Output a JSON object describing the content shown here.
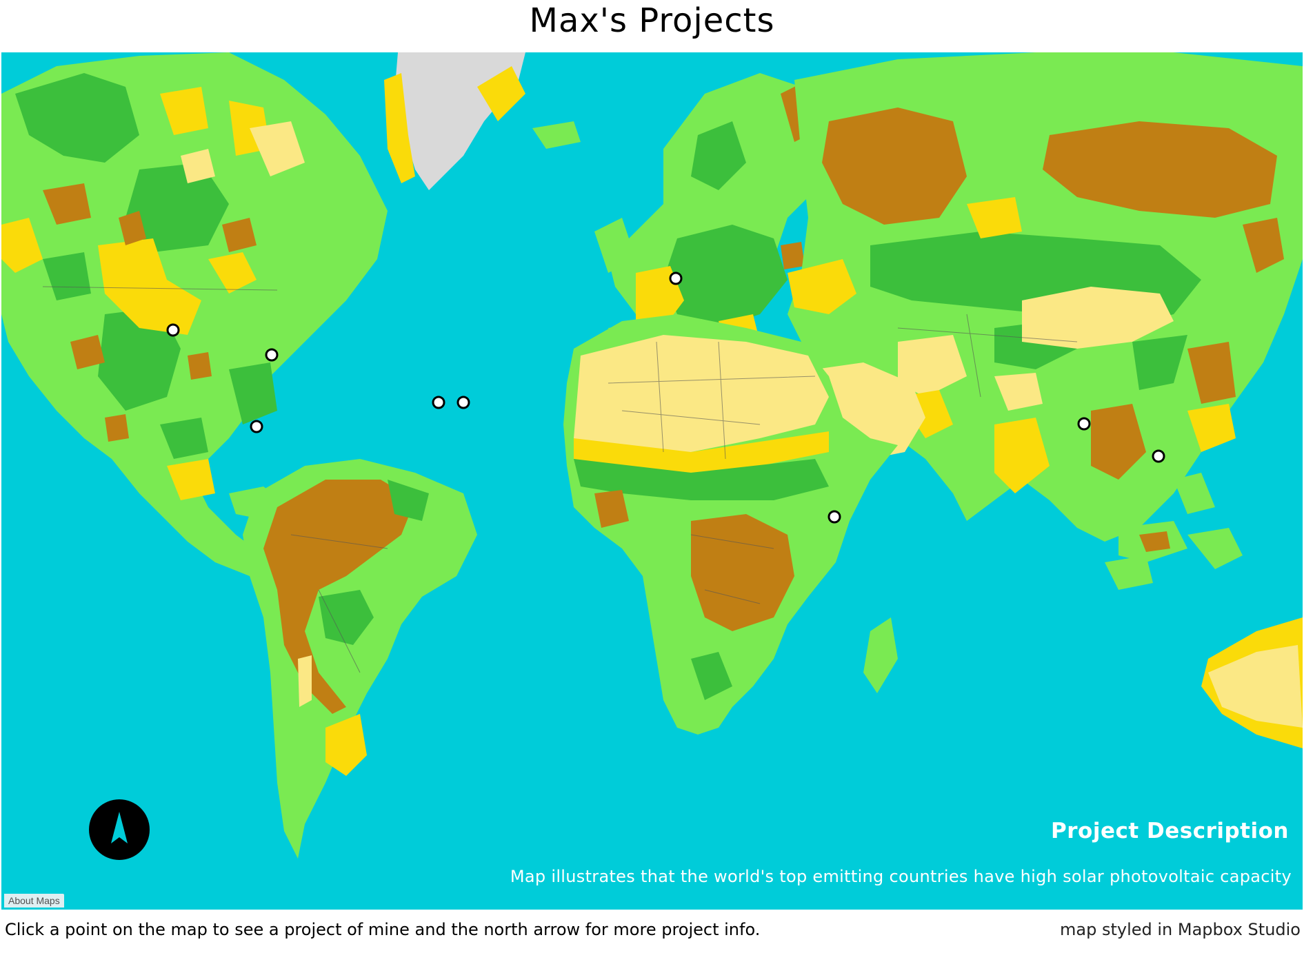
{
  "page": {
    "title": "Max's Projects",
    "instructions": "Click a point on the map to see a project of mine and the north arrow for more project info.",
    "credit": "map styled in Mapbox Studio"
  },
  "map": {
    "about_label": "About Maps",
    "description_title": "Project Description",
    "description_text": "Map illustrates that the world's top emitting countries have high solar photovoltaic capacity",
    "north_arrow_icon": "north-arrow-icon",
    "colors": {
      "ocean": "#00ccd9",
      "land_light_green": "#7aea52",
      "land_dark_green": "#3cbf3c",
      "land_brown": "#c07f14",
      "land_yellow": "#fadb0a",
      "land_pale_yellow": "#fbe885",
      "ice": "#d9d9d9",
      "point_fill": "#ffffff",
      "point_stroke": "#000000"
    },
    "project_points": [
      {
        "id": "colorado"
      },
      {
        "id": "washington-dc"
      },
      {
        "id": "florida"
      },
      {
        "id": "atlantic-1"
      },
      {
        "id": "atlantic-2"
      },
      {
        "id": "belgium"
      },
      {
        "id": "ethiopia"
      },
      {
        "id": "bangladesh"
      },
      {
        "id": "vietnam"
      }
    ]
  }
}
